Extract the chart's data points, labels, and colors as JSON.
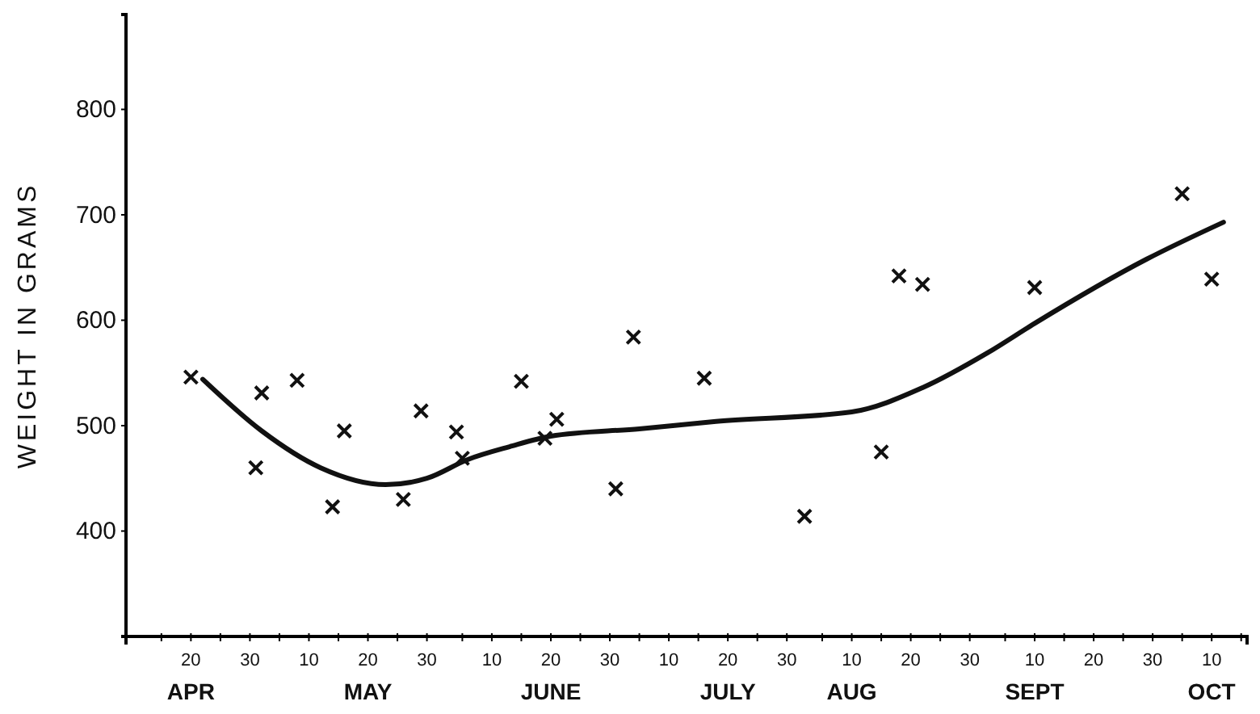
{
  "chart_data": {
    "type": "scatter",
    "ylabel": "WEIGHT IN GRAMS",
    "ylim": [
      300,
      890
    ],
    "yticks": [
      400,
      500,
      600,
      700,
      800
    ],
    "xlim": [
      "--04-09",
      "--10-16"
    ],
    "xticks": [
      {
        "value": "--04-15",
        "label": null
      },
      {
        "value": "--04-20",
        "label": "20\nAPR"
      },
      {
        "value": "--04-25",
        "label": null
      },
      {
        "value": "--04-30",
        "label": "30"
      },
      {
        "value": "--05-05",
        "label": null
      },
      {
        "value": "--05-10",
        "label": "10"
      },
      {
        "value": "--05-15",
        "label": null
      },
      {
        "value": "--05-20",
        "label": "20\nMAY"
      },
      {
        "value": "--05-25",
        "label": null
      },
      {
        "value": "--05-30",
        "label": "30"
      },
      {
        "value": "--06-05",
        "label": null
      },
      {
        "value": "--06-10",
        "label": "10"
      },
      {
        "value": "--06-15",
        "label": null
      },
      {
        "value": "--06-20",
        "label": "20\nJUNE"
      },
      {
        "value": "--06-25",
        "label": null
      },
      {
        "value": "--06-30",
        "label": "30"
      },
      {
        "value": "--07-05",
        "label": null
      },
      {
        "value": "--07-10",
        "label": "10"
      },
      {
        "value": "--07-15",
        "label": null
      },
      {
        "value": "--07-20",
        "label": "20\nJULY"
      },
      {
        "value": "--07-25",
        "label": null
      },
      {
        "value": "--07-30",
        "label": "30"
      },
      {
        "value": "--08-05",
        "label": null
      },
      {
        "value": "--08-10",
        "label": "10\nAUG"
      },
      {
        "value": "--08-15",
        "label": null
      },
      {
        "value": "--08-20",
        "label": "20"
      },
      {
        "value": "--08-25",
        "label": null
      },
      {
        "value": "--08-30",
        "label": "30"
      },
      {
        "value": "--09-05",
        "label": null
      },
      {
        "value": "--09-10",
        "label": "10\nSEPT"
      },
      {
        "value": "--09-15",
        "label": null
      },
      {
        "value": "--09-20",
        "label": "20"
      },
      {
        "value": "--09-25",
        "label": null
      },
      {
        "value": "--09-30",
        "label": "30"
      },
      {
        "value": "--10-05",
        "label": null
      },
      {
        "value": "--10-10",
        "label": "10\nOCT"
      },
      {
        "value": "--10-15",
        "label": null
      }
    ],
    "grid": false,
    "series": [
      {
        "color": "#111111",
        "marker": "cross",
        "x": [
          "--04-20",
          "--05-01",
          "--05-02",
          "--05-08",
          "--05-14",
          "--05-16",
          "--05-26",
          "--05-29",
          "--06-04",
          "--06-05",
          "--06-15",
          "--06-19",
          "--06-21",
          "--07-01",
          "--07-04",
          "--07-16",
          "--08-02",
          "--08-15",
          "--08-18",
          "--08-22",
          "--09-10",
          "--10-05",
          "--10-10"
        ],
        "values": [
          546,
          460,
          531,
          543,
          423,
          495,
          430,
          514,
          494,
          469,
          542,
          488,
          506,
          440,
          584,
          545,
          414,
          475,
          642,
          634,
          631,
          720,
          639
        ]
      },
      {
        "type": "line",
        "color": "#111111",
        "line_style": "solid",
        "marker": "none",
        "x": [
          "--04-22",
          "--05-02",
          "--05-12",
          "--05-23",
          "--05-30",
          "--06-06",
          "--06-13",
          "--06-20",
          "--07-05",
          "--07-18",
          "--08-10",
          "--08-22",
          "--09-02",
          "--09-10",
          "--09-29",
          "--10-12"
        ],
        "values": [
          544,
          495,
          460,
          444,
          450,
          468,
          480,
          490,
          497,
          504,
          513,
          536,
          569,
          597,
          658,
          693
        ]
      }
    ]
  }
}
